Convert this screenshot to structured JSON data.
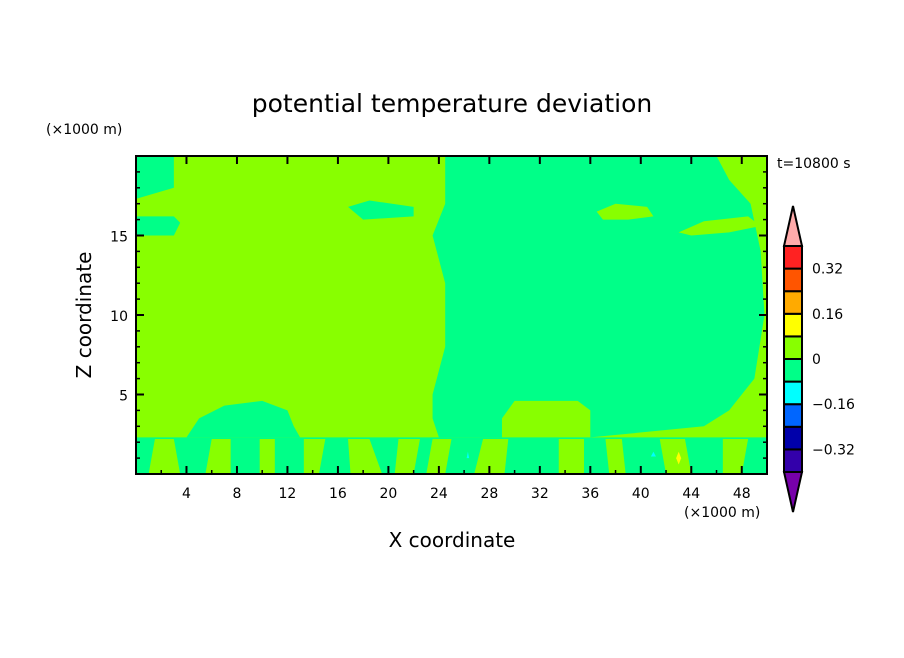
{
  "chart_data": {
    "type": "heatmap",
    "title": "potential temperature deviation",
    "xlabel": "X coordinate",
    "ylabel": "Z coordinate",
    "x_unit": "(×1000 m)",
    "y_unit": "(×1000 m)",
    "time_label": "t=10800 s",
    "xlim": [
      0,
      50
    ],
    "ylim": [
      0,
      20
    ],
    "x_ticks": [
      4,
      8,
      12,
      16,
      20,
      24,
      28,
      32,
      36,
      40,
      44,
      48
    ],
    "y_ticks": [
      5,
      10,
      15
    ],
    "colorbar": {
      "levels": [
        -0.4,
        -0.32,
        -0.24,
        -0.16,
        -0.08,
        0,
        0.08,
        0.16,
        0.24,
        0.32,
        0.4
      ],
      "labels": [
        "0.32",
        "0.16",
        "0",
        "-0.16",
        "-0.32"
      ],
      "label_values": [
        0.32,
        0.16,
        0,
        -0.16,
        -0.32
      ],
      "colors": [
        "#3300aa",
        "#0000aa",
        "#0066ff",
        "#00ffff",
        "#00ff88",
        "#88ff00",
        "#ffff00",
        "#ffaa00",
        "#ff5500",
        "#ff2222"
      ],
      "under_color": "#7700aa",
      "over_color": "#ffaaaa"
    },
    "background_value_color": "#88ff00",
    "regions": [
      {
        "color": "#00ff88",
        "points": [
          [
            24.5,
            20
          ],
          [
            46,
            20
          ],
          [
            47,
            18.5
          ],
          [
            48.7,
            17
          ],
          [
            49.5,
            14
          ],
          [
            49.8,
            10
          ],
          [
            49,
            6
          ],
          [
            47,
            4
          ],
          [
            45,
            3
          ],
          [
            36,
            2.3
          ],
          [
            36,
            4
          ],
          [
            35,
            4.6
          ],
          [
            30,
            4.6
          ],
          [
            29,
            3.5
          ],
          [
            29,
            2.3
          ],
          [
            24,
            2.3
          ],
          [
            23.5,
            3.5
          ],
          [
            23.5,
            5
          ],
          [
            24.5,
            8
          ],
          [
            24.5,
            12
          ],
          [
            23.5,
            15
          ],
          [
            24.5,
            17
          ]
        ]
      },
      {
        "color": "#88ff00",
        "points": [
          [
            36.5,
            16.5
          ],
          [
            38,
            17
          ],
          [
            40.5,
            16.8
          ],
          [
            41,
            16.2
          ],
          [
            39,
            16
          ],
          [
            37,
            16
          ]
        ]
      },
      {
        "color": "#88ff00",
        "points": [
          [
            43,
            15.2
          ],
          [
            45,
            15.9
          ],
          [
            48.5,
            16.2
          ],
          [
            49.5,
            15.6
          ],
          [
            47,
            15.2
          ],
          [
            44,
            15
          ]
        ]
      },
      {
        "color": "#00ff88",
        "points": [
          [
            0,
            20
          ],
          [
            3,
            20
          ],
          [
            3,
            18
          ],
          [
            0,
            17.3
          ]
        ]
      },
      {
        "color": "#00ff88",
        "points": [
          [
            0,
            16.2
          ],
          [
            3,
            16.2
          ],
          [
            3.5,
            15.8
          ],
          [
            3,
            15
          ],
          [
            0,
            15
          ]
        ]
      },
      {
        "color": "#00ff88",
        "points": [
          [
            16.8,
            16.8
          ],
          [
            18.5,
            17.2
          ],
          [
            22,
            16.8
          ],
          [
            22,
            16.2
          ],
          [
            18,
            16
          ]
        ]
      },
      {
        "color": "#00ff88",
        "points": [
          [
            4,
            2.3
          ],
          [
            5,
            3.5
          ],
          [
            7,
            4.3
          ],
          [
            10,
            4.6
          ],
          [
            12,
            4
          ],
          [
            12.5,
            3
          ],
          [
            13,
            2.3
          ]
        ]
      },
      {
        "color": "#00ff88",
        "points": [
          [
            0,
            0
          ],
          [
            50,
            0
          ],
          [
            50,
            2.3
          ],
          [
            0,
            2.3
          ]
        ]
      },
      {
        "color": "#88ff00",
        "points": [
          [
            1,
            0
          ],
          [
            1.5,
            2.2
          ],
          [
            3,
            2.2
          ],
          [
            3.5,
            0
          ]
        ]
      },
      {
        "color": "#88ff00",
        "points": [
          [
            5.5,
            0
          ],
          [
            6,
            2.2
          ],
          [
            7.5,
            2.2
          ],
          [
            7.5,
            0
          ]
        ]
      },
      {
        "color": "#88ff00",
        "points": [
          [
            9.8,
            0
          ],
          [
            9.8,
            2.2
          ],
          [
            11,
            2.2
          ],
          [
            11,
            0
          ]
        ]
      },
      {
        "color": "#88ff00",
        "points": [
          [
            13.3,
            0
          ],
          [
            13.3,
            2.2
          ],
          [
            15,
            2.2
          ],
          [
            14.5,
            0
          ]
        ]
      },
      {
        "color": "#88ff00",
        "points": [
          [
            17,
            0
          ],
          [
            16.8,
            2.2
          ],
          [
            18.5,
            2.2
          ],
          [
            19.5,
            0
          ]
        ]
      },
      {
        "color": "#88ff00",
        "points": [
          [
            20.5,
            0
          ],
          [
            20.8,
            2.2
          ],
          [
            22.5,
            2.2
          ],
          [
            22,
            0
          ]
        ]
      },
      {
        "color": "#88ff00",
        "points": [
          [
            23,
            0
          ],
          [
            23.5,
            2.2
          ],
          [
            25,
            2.2
          ],
          [
            24.5,
            0
          ]
        ]
      },
      {
        "color": "#88ff00",
        "points": [
          [
            26.8,
            0
          ],
          [
            27.5,
            2.2
          ],
          [
            29.5,
            2.2
          ],
          [
            29.2,
            0
          ]
        ]
      },
      {
        "color": "#88ff00",
        "points": [
          [
            33.5,
            0
          ],
          [
            33.5,
            2.2
          ],
          [
            35.5,
            2.2
          ],
          [
            35.5,
            0
          ]
        ]
      },
      {
        "color": "#88ff00",
        "points": [
          [
            37.5,
            0
          ],
          [
            37.2,
            2.2
          ],
          [
            38.5,
            2.2
          ],
          [
            38.8,
            0
          ]
        ]
      },
      {
        "color": "#88ff00",
        "points": [
          [
            42,
            0
          ],
          [
            41.5,
            2.2
          ],
          [
            43.5,
            2.2
          ],
          [
            44,
            0
          ]
        ]
      },
      {
        "color": "#88ff00",
        "points": [
          [
            46.5,
            0
          ],
          [
            46.5,
            2.2
          ],
          [
            48.5,
            2.2
          ],
          [
            48,
            0
          ]
        ]
      },
      {
        "color": "#ffff00",
        "points": [
          [
            42.8,
            1
          ],
          [
            43,
            1.4
          ],
          [
            43.2,
            1
          ],
          [
            43,
            0.6
          ]
        ]
      },
      {
        "color": "#00ffff",
        "points": [
          [
            26.2,
            1
          ],
          [
            26.3,
            1.4
          ],
          [
            26.4,
            1
          ]
        ]
      },
      {
        "color": "#00ffff",
        "points": [
          [
            40.8,
            1.1
          ],
          [
            41,
            1.4
          ],
          [
            41.2,
            1.1
          ]
        ]
      }
    ]
  }
}
